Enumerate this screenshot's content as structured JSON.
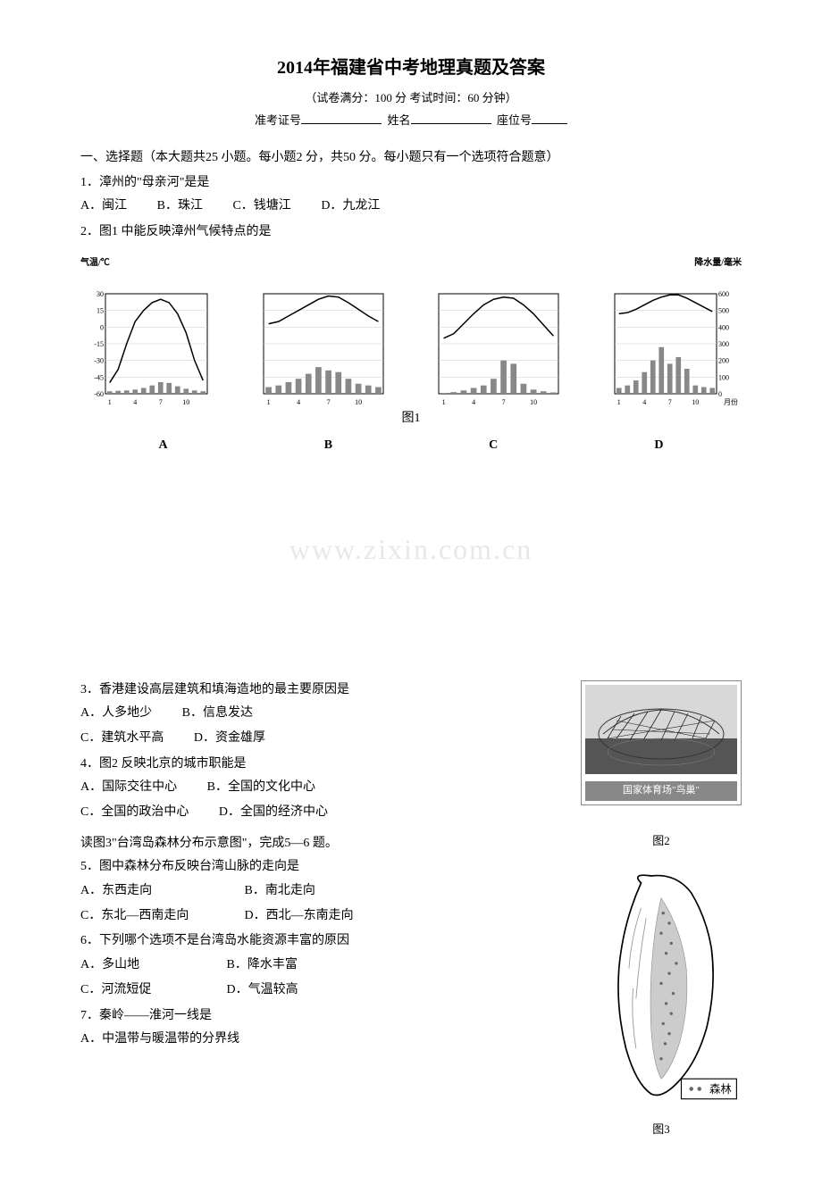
{
  "header": {
    "title": "2014年福建省中考地理真题及答案",
    "subtitle": "（试卷满分：100 分 考试时间：60 分钟）",
    "exam_id_label": "准考证号",
    "name_label": "姓名",
    "seat_label": "座位号"
  },
  "section1": {
    "header": "一、选择题（本大题共25 小题。每小题2 分，共50 分。每小题只有一个选项符合题意）"
  },
  "q1": {
    "text": "1．漳州的\"母亲河\"是是",
    "optA": "A．闽江",
    "optB": "B．珠江",
    "optC": "C．钱塘江",
    "optD": "D．九龙江"
  },
  "q2": {
    "text": "2．图1 中能反映漳州气候特点的是"
  },
  "chart1": {
    "temp_axis_label": "气温/℃",
    "precip_axis_label": "降水量/毫米",
    "month_label": "月份",
    "fig_label": "图1",
    "temp_ticks": [
      "30",
      "15",
      "0",
      "-15",
      "-30",
      "-45",
      "-60"
    ],
    "precip_ticks": [
      "600",
      "500",
      "400",
      "300",
      "200",
      "100",
      "0"
    ],
    "x_ticks": [
      "1",
      "4",
      "7",
      "10"
    ],
    "panels": {
      "A": {
        "label": "A",
        "temp_curve": [
          -50,
          -38,
          -15,
          5,
          15,
          22,
          25,
          22,
          12,
          -5,
          -30,
          -48
        ],
        "precip_bars": [
          15,
          18,
          20,
          25,
          35,
          50,
          70,
          65,
          45,
          30,
          20,
          15
        ]
      },
      "B": {
        "label": "B",
        "temp_curve": [
          3,
          5,
          10,
          15,
          20,
          25,
          28,
          27,
          22,
          16,
          10,
          5
        ],
        "precip_bars": [
          40,
          50,
          70,
          90,
          120,
          160,
          140,
          130,
          90,
          60,
          50,
          40
        ]
      },
      "C": {
        "label": "C",
        "temp_curve": [
          -10,
          -6,
          3,
          12,
          20,
          25,
          27,
          26,
          20,
          12,
          2,
          -8
        ],
        "precip_bars": [
          5,
          10,
          20,
          35,
          50,
          90,
          200,
          180,
          60,
          25,
          15,
          8
        ]
      },
      "D": {
        "label": "D",
        "temp_curve": [
          12,
          13,
          16,
          20,
          24,
          27,
          29,
          29,
          26,
          22,
          18,
          14
        ],
        "precip_bars": [
          35,
          50,
          80,
          130,
          200,
          280,
          180,
          220,
          150,
          50,
          40,
          35
        ]
      }
    },
    "colors": {
      "line": "#000000",
      "bar": "#888888",
      "grid": "#cccccc",
      "background": "#ffffff"
    }
  },
  "watermark": "www.zixin.com.cn",
  "q3": {
    "text": "3．香港建设高层建筑和填海造地的最主要原因是",
    "optA": "A．人多地少",
    "optB": "B．信息发达",
    "optC": "C．建筑水平高",
    "optD": "D．资金雄厚"
  },
  "q4": {
    "text": "4．图2 反映北京的城市职能是",
    "optA": "A．国际交往中心",
    "optB": "B．全国的文化中心",
    "optC": "C．全国的政治中心",
    "optD": "D．全国的经济中心"
  },
  "fig2": {
    "caption": "国家体育场\"鸟巢\"",
    "label": "图2"
  },
  "q5_intro": "读图3\"台湾岛森林分布示意图\"，完成5—6 题。",
  "q5": {
    "text": "5．图中森林分布反映台湾山脉的走向是",
    "optA": "A．东西走向",
    "optB": "B．南北走向",
    "optC": "C．东北—西南走向",
    "optD": "D．西北—东南走向"
  },
  "q6": {
    "text": "6．下列哪个选项不是台湾岛水能资源丰富的原因",
    "optA": "A．多山地",
    "optB": "B．降水丰富",
    "optC": "C．河流短促",
    "optD": "D．气温较高"
  },
  "q7": {
    "text": "7．秦岭——淮河一线是",
    "optA": "A．中温带与暖温带的分界线"
  },
  "fig3": {
    "legend": "森林",
    "label": "图3"
  }
}
